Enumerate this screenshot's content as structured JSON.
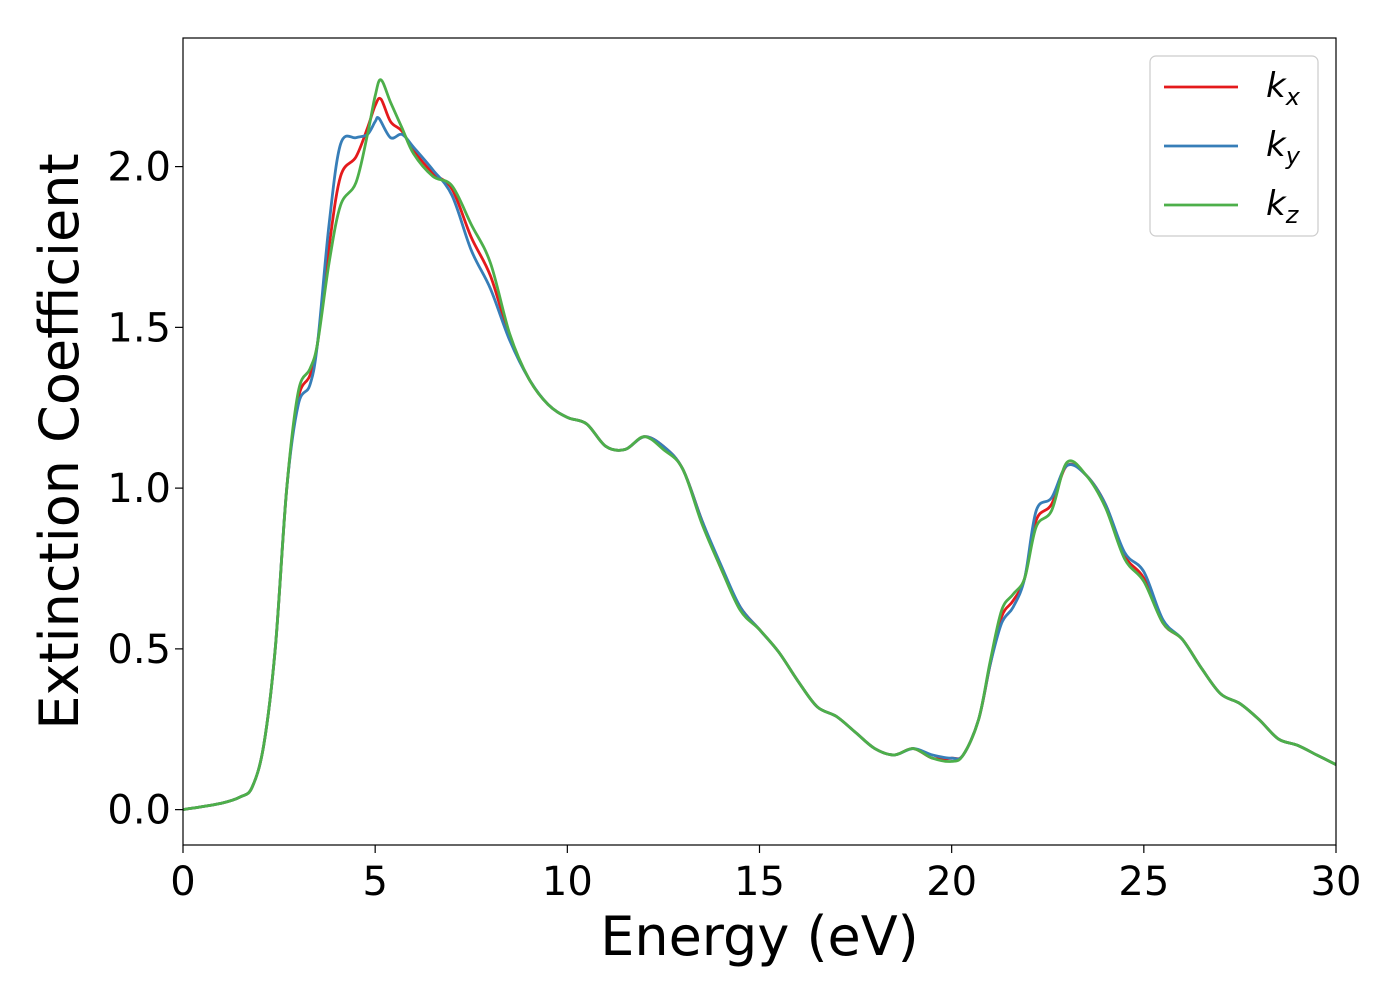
{
  "chart_data": {
    "type": "line",
    "title": "",
    "xlabel": "Energy (eV)",
    "ylabel": "Extinction Coefficient",
    "xlim": [
      0,
      30
    ],
    "ylim": [
      -0.11,
      2.4
    ],
    "xticks": [
      0,
      5,
      10,
      15,
      20,
      25,
      30
    ],
    "xtick_labels": [
      "0",
      "5",
      "10",
      "15",
      "20",
      "25",
      "30"
    ],
    "yticks": [
      0.0,
      0.5,
      1.0,
      1.5,
      2.0
    ],
    "ytick_labels": [
      "0.0",
      "0.5",
      "1.0",
      "1.5",
      "2.0"
    ],
    "grid": false,
    "legend_position": "top-right",
    "series": [
      {
        "name": "k",
        "sub": "x",
        "color": "#e41a1c",
        "points": [
          [
            0,
            0
          ],
          [
            1,
            0.02
          ],
          [
            1.5,
            0.04
          ],
          [
            1.8,
            0.07
          ],
          [
            2.1,
            0.2
          ],
          [
            2.4,
            0.5
          ],
          [
            2.7,
            1.0
          ],
          [
            3.0,
            1.28
          ],
          [
            3.3,
            1.35
          ],
          [
            3.5,
            1.45
          ],
          [
            3.8,
            1.75
          ],
          [
            4.1,
            1.97
          ],
          [
            4.5,
            2.03
          ],
          [
            4.8,
            2.12
          ],
          [
            5.0,
            2.19
          ],
          [
            5.15,
            2.21
          ],
          [
            5.4,
            2.14
          ],
          [
            5.7,
            2.11
          ],
          [
            6.0,
            2.05
          ],
          [
            6.5,
            1.98
          ],
          [
            7.0,
            1.93
          ],
          [
            7.5,
            1.78
          ],
          [
            8.0,
            1.66
          ],
          [
            8.5,
            1.47
          ],
          [
            9.0,
            1.34
          ],
          [
            9.5,
            1.26
          ],
          [
            10.0,
            1.22
          ],
          [
            10.5,
            1.2
          ],
          [
            11.0,
            1.13
          ],
          [
            11.5,
            1.12
          ],
          [
            12.0,
            1.16
          ],
          [
            12.5,
            1.13
          ],
          [
            13.0,
            1.06
          ],
          [
            13.5,
            0.9
          ],
          [
            14.0,
            0.75
          ],
          [
            14.5,
            0.63
          ],
          [
            15.0,
            0.56
          ],
          [
            15.5,
            0.49
          ],
          [
            16.0,
            0.4
          ],
          [
            16.5,
            0.32
          ],
          [
            17.0,
            0.29
          ],
          [
            17.5,
            0.24
          ],
          [
            18.0,
            0.19
          ],
          [
            18.5,
            0.17
          ],
          [
            19.0,
            0.19
          ],
          [
            19.5,
            0.16
          ],
          [
            20.0,
            0.16
          ],
          [
            20.3,
            0.17
          ],
          [
            20.7,
            0.28
          ],
          [
            21.0,
            0.45
          ],
          [
            21.3,
            0.6
          ],
          [
            21.6,
            0.65
          ],
          [
            21.9,
            0.72
          ],
          [
            22.2,
            0.9
          ],
          [
            22.6,
            0.95
          ],
          [
            23.0,
            1.07
          ],
          [
            23.5,
            1.04
          ],
          [
            24.0,
            0.95
          ],
          [
            24.5,
            0.79
          ],
          [
            25.0,
            0.72
          ],
          [
            25.5,
            0.58
          ],
          [
            26.0,
            0.53
          ],
          [
            26.5,
            0.44
          ],
          [
            27.0,
            0.36
          ],
          [
            27.5,
            0.33
          ],
          [
            28.0,
            0.28
          ],
          [
            28.5,
            0.22
          ],
          [
            29.0,
            0.2
          ],
          [
            29.5,
            0.17
          ],
          [
            30.0,
            0.14
          ]
        ]
      },
      {
        "name": "k",
        "sub": "y",
        "color": "#377eb8",
        "points": [
          [
            0,
            0
          ],
          [
            1,
            0.02
          ],
          [
            1.5,
            0.04
          ],
          [
            1.8,
            0.07
          ],
          [
            2.1,
            0.2
          ],
          [
            2.4,
            0.5
          ],
          [
            2.7,
            1.0
          ],
          [
            3.0,
            1.26
          ],
          [
            3.3,
            1.32
          ],
          [
            3.5,
            1.45
          ],
          [
            3.8,
            1.82
          ],
          [
            4.1,
            2.07
          ],
          [
            4.5,
            2.09
          ],
          [
            4.8,
            2.1
          ],
          [
            5.0,
            2.14
          ],
          [
            5.1,
            2.15
          ],
          [
            5.4,
            2.09
          ],
          [
            5.7,
            2.1
          ],
          [
            6.0,
            2.06
          ],
          [
            6.5,
            1.99
          ],
          [
            7.0,
            1.91
          ],
          [
            7.5,
            1.74
          ],
          [
            8.0,
            1.62
          ],
          [
            8.5,
            1.46
          ],
          [
            9.0,
            1.34
          ],
          [
            9.5,
            1.26
          ],
          [
            10.0,
            1.22
          ],
          [
            10.5,
            1.2
          ],
          [
            11.0,
            1.13
          ],
          [
            11.5,
            1.12
          ],
          [
            12.0,
            1.16
          ],
          [
            12.5,
            1.13
          ],
          [
            13.0,
            1.06
          ],
          [
            13.5,
            0.9
          ],
          [
            14.0,
            0.76
          ],
          [
            14.5,
            0.63
          ],
          [
            15.0,
            0.56
          ],
          [
            15.5,
            0.49
          ],
          [
            16.0,
            0.4
          ],
          [
            16.5,
            0.32
          ],
          [
            17.0,
            0.29
          ],
          [
            17.5,
            0.24
          ],
          [
            18.0,
            0.19
          ],
          [
            18.5,
            0.17
          ],
          [
            19.0,
            0.19
          ],
          [
            19.5,
            0.17
          ],
          [
            20.0,
            0.16
          ],
          [
            20.3,
            0.17
          ],
          [
            20.7,
            0.28
          ],
          [
            21.0,
            0.45
          ],
          [
            21.3,
            0.58
          ],
          [
            21.6,
            0.63
          ],
          [
            21.9,
            0.72
          ],
          [
            22.2,
            0.93
          ],
          [
            22.6,
            0.97
          ],
          [
            23.0,
            1.07
          ],
          [
            23.5,
            1.04
          ],
          [
            24.0,
            0.95
          ],
          [
            24.5,
            0.8
          ],
          [
            25.0,
            0.74
          ],
          [
            25.5,
            0.59
          ],
          [
            26.0,
            0.53
          ],
          [
            26.5,
            0.44
          ],
          [
            27.0,
            0.36
          ],
          [
            27.5,
            0.33
          ],
          [
            28.0,
            0.28
          ],
          [
            28.5,
            0.22
          ],
          [
            29.0,
            0.2
          ],
          [
            29.5,
            0.17
          ],
          [
            30.0,
            0.14
          ]
        ]
      },
      {
        "name": "k",
        "sub": "z",
        "color": "#4daf4a",
        "points": [
          [
            0,
            0
          ],
          [
            1,
            0.02
          ],
          [
            1.5,
            0.04
          ],
          [
            1.8,
            0.07
          ],
          [
            2.1,
            0.2
          ],
          [
            2.4,
            0.5
          ],
          [
            2.7,
            1.0
          ],
          [
            3.0,
            1.3
          ],
          [
            3.3,
            1.37
          ],
          [
            3.5,
            1.45
          ],
          [
            3.8,
            1.7
          ],
          [
            4.1,
            1.88
          ],
          [
            4.5,
            1.95
          ],
          [
            4.8,
            2.1
          ],
          [
            5.0,
            2.22
          ],
          [
            5.15,
            2.27
          ],
          [
            5.4,
            2.2
          ],
          [
            5.7,
            2.12
          ],
          [
            6.0,
            2.04
          ],
          [
            6.5,
            1.97
          ],
          [
            7.0,
            1.94
          ],
          [
            7.5,
            1.82
          ],
          [
            8.0,
            1.7
          ],
          [
            8.5,
            1.48
          ],
          [
            9.0,
            1.34
          ],
          [
            9.5,
            1.26
          ],
          [
            10.0,
            1.22
          ],
          [
            10.5,
            1.2
          ],
          [
            11.0,
            1.13
          ],
          [
            11.5,
            1.12
          ],
          [
            12.0,
            1.16
          ],
          [
            12.5,
            1.12
          ],
          [
            13.0,
            1.06
          ],
          [
            13.5,
            0.89
          ],
          [
            14.0,
            0.75
          ],
          [
            14.5,
            0.62
          ],
          [
            15.0,
            0.56
          ],
          [
            15.5,
            0.49
          ],
          [
            16.0,
            0.4
          ],
          [
            16.5,
            0.32
          ],
          [
            17.0,
            0.29
          ],
          [
            17.5,
            0.24
          ],
          [
            18.0,
            0.19
          ],
          [
            18.5,
            0.17
          ],
          [
            19.0,
            0.19
          ],
          [
            19.5,
            0.16
          ],
          [
            20.0,
            0.15
          ],
          [
            20.3,
            0.17
          ],
          [
            20.7,
            0.28
          ],
          [
            21.0,
            0.46
          ],
          [
            21.3,
            0.62
          ],
          [
            21.6,
            0.67
          ],
          [
            21.9,
            0.72
          ],
          [
            22.2,
            0.88
          ],
          [
            22.6,
            0.93
          ],
          [
            23.0,
            1.08
          ],
          [
            23.5,
            1.04
          ],
          [
            24.0,
            0.94
          ],
          [
            24.5,
            0.78
          ],
          [
            25.0,
            0.71
          ],
          [
            25.5,
            0.58
          ],
          [
            26.0,
            0.53
          ],
          [
            26.5,
            0.44
          ],
          [
            27.0,
            0.36
          ],
          [
            27.5,
            0.33
          ],
          [
            28.0,
            0.28
          ],
          [
            28.5,
            0.22
          ],
          [
            29.0,
            0.2
          ],
          [
            29.5,
            0.17
          ],
          [
            30.0,
            0.14
          ]
        ]
      }
    ]
  }
}
